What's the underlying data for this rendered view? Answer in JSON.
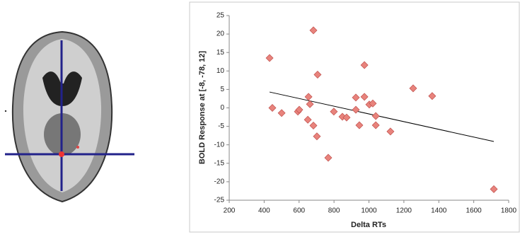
{
  "chart_data": {
    "type": "scatter",
    "xlabel": "Delta RTs",
    "ylabel": "BOLD Response at [-8, -78, 12]",
    "x": [
      431,
      447,
      500,
      593,
      601,
      654,
      662,
      650,
      682,
      682,
      706,
      702,
      767,
      799,
      848,
      872,
      925,
      925,
      945,
      974,
      974,
      1002,
      1022,
      1039,
      1039,
      1123,
      1253,
      1362,
      1715
    ],
    "values": [
      13.5,
      0,
      -1.4,
      -1,
      -0.5,
      3,
      1,
      -3.2,
      -4.8,
      21,
      9,
      -7.7,
      -13.5,
      -1,
      -2.4,
      -2.6,
      2.8,
      -0.5,
      -4.7,
      11.6,
      3,
      0.9,
      1.2,
      -2.2,
      -4.7,
      -6.4,
      5.3,
      3.2,
      -22
    ],
    "color": "#e8837c",
    "trendline": {
      "x": [
        431,
        1715
      ],
      "y": [
        4.3,
        -9.1
      ]
    },
    "xlim": [
      200,
      1800
    ],
    "xticks": [
      200,
      400,
      600,
      800,
      1000,
      1200,
      1400,
      1600,
      1800
    ],
    "ylim": [
      -25,
      25
    ],
    "yticks": [
      -25,
      -20,
      -15,
      -10,
      -5,
      0,
      5,
      10,
      15,
      20,
      25
    ]
  }
}
